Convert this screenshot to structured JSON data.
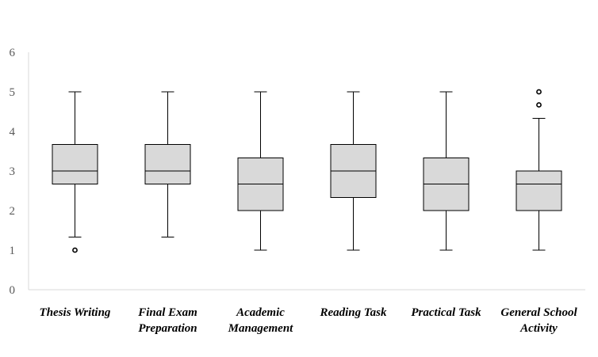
{
  "chart_data": {
    "type": "boxplot",
    "title": "",
    "xlabel": "",
    "ylabel": "",
    "ylim": [
      0,
      6
    ],
    "yticks": [
      0,
      1,
      2,
      3,
      4,
      5,
      6
    ],
    "grid": false,
    "legend": "none",
    "box_fill": "#d9d9d9",
    "line_color": "#000000",
    "categories": [
      {
        "label_lines": [
          "Thesis Writing"
        ],
        "min": 1.33,
        "q1": 2.67,
        "median": 3.0,
        "q3": 3.67,
        "max": 5.0,
        "outliers": [
          1.0
        ]
      },
      {
        "label_lines": [
          "Final Exam",
          "Preparation"
        ],
        "min": 1.33,
        "q1": 2.67,
        "median": 3.0,
        "q3": 3.67,
        "max": 5.0,
        "outliers": []
      },
      {
        "label_lines": [
          "Academic",
          "Management"
        ],
        "min": 1.0,
        "q1": 2.0,
        "median": 2.67,
        "q3": 3.33,
        "max": 5.0,
        "outliers": []
      },
      {
        "label_lines": [
          "Reading Task"
        ],
        "min": 1.0,
        "q1": 2.33,
        "median": 3.0,
        "q3": 3.67,
        "max": 5.0,
        "outliers": []
      },
      {
        "label_lines": [
          "Practical Task"
        ],
        "min": 1.0,
        "q1": 2.0,
        "median": 2.67,
        "q3": 3.33,
        "max": 5.0,
        "outliers": []
      },
      {
        "label_lines": [
          "General School",
          "Activity"
        ],
        "min": 1.0,
        "q1": 2.0,
        "median": 2.67,
        "q3": 3.0,
        "max": 4.33,
        "outliers": [
          4.67,
          5.0
        ]
      }
    ]
  }
}
